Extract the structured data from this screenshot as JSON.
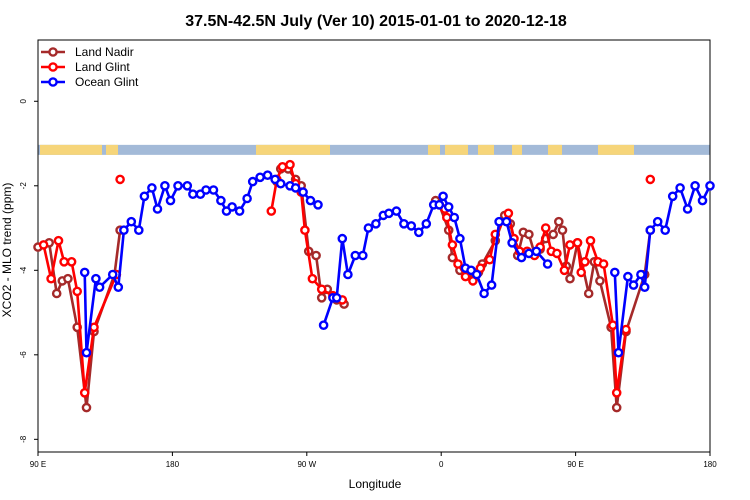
{
  "chart_data": {
    "type": "line",
    "title": "37.5N-42.5N July (Ver 10)   2015-01-01 to 2020-12-18",
    "xlabel": "Longitude",
    "ylabel": "XCO2 - MLO trend (ppm)",
    "xlim": [
      90,
      450
    ],
    "ylim": [
      -8.3,
      1.45
    ],
    "x_ticks": [
      {
        "value": 90,
        "label": "90 E"
      },
      {
        "value": 162,
        "label": "180"
      },
      {
        "value": 234,
        "label": "90 W"
      },
      {
        "value": 306,
        "label": "0"
      },
      {
        "value": 378,
        "label": "90 E"
      },
      {
        "value": 450,
        "label": "180"
      }
    ],
    "y_ticks": [
      {
        "value": 0,
        "label": "0"
      },
      {
        "value": -2,
        "label": "-2"
      },
      {
        "value": -4,
        "label": "-4"
      },
      {
        "value": -6,
        "label": "-6"
      },
      {
        "value": -8,
        "label": "-8"
      }
    ],
    "legend_position": "top-left",
    "map_strip": {
      "y": -1.15,
      "ocean_color": "#a3bad8",
      "land_color": "#f6d57a"
    },
    "series": [
      {
        "name": "Land Nadir",
        "color": "#a52a2a",
        "segments": [
          [
            [
              90,
              -3.45
            ],
            [
              96,
              -3.35
            ],
            [
              100,
              -4.55
            ],
            [
              103,
              -4.25
            ],
            [
              106,
              -4.2
            ],
            [
              111,
              -5.35
            ],
            [
              116,
              -7.25
            ],
            [
              120,
              -5.45
            ],
            [
              131,
              -4.1
            ],
            [
              134,
              -3.05
            ]
          ],
          [
            [
              218,
              -1.9
            ],
            [
              220,
              -1.6
            ],
            [
              224,
              -1.6
            ],
            [
              228,
              -1.85
            ],
            [
              231,
              -2.0
            ],
            [
              235,
              -3.55
            ],
            [
              239,
              -3.65
            ],
            [
              242,
              -4.65
            ],
            [
              245,
              -4.45
            ],
            [
              250,
              -4.7
            ],
            [
              254,
              -4.8
            ]
          ],
          [
            [
              303,
              -2.35
            ],
            [
              305,
              -2.45
            ],
            [
              310,
              -3.05
            ],
            [
              312,
              -3.7
            ],
            [
              316,
              -4.0
            ],
            [
              322,
              -4.05
            ],
            [
              326,
              -4.05
            ],
            [
              328,
              -3.85
            ],
            [
              335,
              -3.3
            ],
            [
              340,
              -2.7
            ],
            [
              343,
              -2.9
            ],
            [
              347,
              -3.65
            ],
            [
              350,
              -3.1
            ],
            [
              353,
              -3.15
            ],
            [
              356,
              -3.6
            ],
            [
              359,
              -3.5
            ],
            [
              362,
              -3.25
            ],
            [
              366,
              -3.15
            ],
            [
              369,
              -2.85
            ],
            [
              371,
              -3.05
            ],
            [
              373,
              -3.9
            ],
            [
              375,
              -4.2
            ],
            [
              379,
              -3.35
            ],
            [
              385,
              -4.55
            ],
            [
              388,
              -3.8
            ],
            [
              391,
              -4.25
            ],
            [
              397,
              -5.35
            ],
            [
              400,
              -7.25
            ],
            [
              405,
              -5.45
            ],
            [
              415,
              -4.1
            ],
            [
              418,
              -3.05
            ]
          ]
        ]
      },
      {
        "name": "Land Glint",
        "color": "#ff0000",
        "segments": [
          [
            [
              93,
              -3.4
            ],
            [
              97,
              -4.2
            ],
            [
              101,
              -3.3
            ],
            [
              104,
              -3.8
            ],
            [
              108,
              -3.8
            ],
            [
              111,
              -4.5
            ],
            [
              115,
              -6.9
            ],
            [
              120,
              -5.35
            ],
            [
              132,
              -4.1
            ]
          ],
          [
            [
              134,
              -1.85
            ]
          ],
          [
            [
              215,
              -2.6
            ],
            [
              218,
              -1.85
            ],
            [
              221,
              -1.55
            ],
            [
              225,
              -1.5
            ],
            [
              228,
              -1.95
            ],
            [
              231,
              -2.15
            ],
            [
              233,
              -3.05
            ],
            [
              237,
              -4.2
            ],
            [
              242,
              -4.45
            ],
            [
              248,
              -4.6
            ],
            [
              253,
              -4.7
            ]
          ],
          [
            [
              308,
              -2.55
            ],
            [
              309,
              -2.75
            ],
            [
              312,
              -3.4
            ],
            [
              315,
              -3.85
            ],
            [
              319,
              -4.15
            ],
            [
              323,
              -4.25
            ],
            [
              327,
              -3.95
            ],
            [
              332,
              -3.75
            ],
            [
              335,
              -3.15
            ],
            [
              342,
              -2.65
            ],
            [
              345,
              -3.25
            ],
            [
              348,
              -3.55
            ],
            [
              352,
              -3.55
            ],
            [
              356,
              -3.65
            ],
            [
              359,
              -3.45
            ],
            [
              362,
              -3.0
            ],
            [
              365,
              -3.55
            ],
            [
              368,
              -3.6
            ],
            [
              372,
              -4.0
            ],
            [
              375,
              -3.4
            ],
            [
              379,
              -3.35
            ],
            [
              381,
              -4.05
            ],
            [
              383,
              -3.8
            ],
            [
              386,
              -3.3
            ],
            [
              390,
              -3.8
            ],
            [
              393,
              -3.85
            ],
            [
              398,
              -5.3
            ],
            [
              400,
              -6.9
            ],
            [
              405,
              -5.4
            ]
          ],
          [
            [
              418,
              -1.85
            ]
          ]
        ]
      },
      {
        "name": "Ocean Glint",
        "color": "#0000ff",
        "segments": [
          [
            [
              115,
              -4.05
            ],
            [
              116,
              -5.95
            ],
            [
              121,
              -4.2
            ],
            [
              123,
              -4.4
            ],
            [
              130,
              -4.1
            ],
            [
              133,
              -4.4
            ],
            [
              136,
              -3.05
            ],
            [
              140,
              -2.85
            ],
            [
              144,
              -3.05
            ],
            [
              147,
              -2.25
            ],
            [
              151,
              -2.05
            ],
            [
              154,
              -2.55
            ],
            [
              158,
              -2.0
            ],
            [
              161,
              -2.35
            ],
            [
              165,
              -2.0
            ],
            [
              170,
              -2.0
            ],
            [
              173,
              -2.2
            ],
            [
              177,
              -2.2
            ],
            [
              180,
              -2.1
            ],
            [
              184,
              -2.1
            ],
            [
              188,
              -2.35
            ],
            [
              191,
              -2.6
            ],
            [
              194,
              -2.5
            ],
            [
              198,
              -2.6
            ],
            [
              202,
              -2.3
            ],
            [
              205,
              -1.9
            ],
            [
              209,
              -1.8
            ],
            [
              213,
              -1.75
            ],
            [
              217,
              -1.85
            ],
            [
              220,
              -1.95
            ],
            [
              225,
              -2.0
            ],
            [
              228,
              -2.05
            ],
            [
              232,
              -2.15
            ],
            [
              236,
              -2.35
            ],
            [
              240,
              -2.45
            ]
          ],
          [
            [
              243,
              -5.3
            ],
            [
              248,
              -4.65
            ],
            [
              250,
              -4.65
            ],
            [
              253,
              -3.25
            ],
            [
              256,
              -4.1
            ],
            [
              260,
              -3.65
            ],
            [
              264,
              -3.65
            ],
            [
              267,
              -3.0
            ],
            [
              271,
              -2.9
            ],
            [
              275,
              -2.7
            ],
            [
              278,
              -2.65
            ],
            [
              282,
              -2.6
            ],
            [
              286,
              -2.9
            ],
            [
              290,
              -2.95
            ],
            [
              294,
              -3.1
            ],
            [
              298,
              -2.9
            ],
            [
              302,
              -2.45
            ],
            [
              305,
              -2.45
            ],
            [
              307,
              -2.25
            ],
            [
              310,
              -2.5
            ],
            [
              313,
              -2.75
            ],
            [
              316,
              -3.25
            ],
            [
              319,
              -3.95
            ],
            [
              322,
              -4.0
            ],
            [
              325,
              -4.1
            ],
            [
              329,
              -4.55
            ],
            [
              333,
              -4.35
            ],
            [
              337,
              -2.85
            ],
            [
              341,
              -2.85
            ],
            [
              344,
              -3.35
            ],
            [
              349,
              -3.7
            ],
            [
              353,
              -3.6
            ],
            [
              357,
              -3.55
            ],
            [
              363,
              -3.85
            ]
          ],
          [
            [
              399,
              -4.05
            ],
            [
              401,
              -5.95
            ],
            [
              406,
              -4.15
            ],
            [
              409,
              -4.35
            ],
            [
              413,
              -4.1
            ],
            [
              415,
              -4.4
            ],
            [
              418,
              -3.05
            ],
            [
              422,
              -2.85
            ],
            [
              426,
              -3.05
            ],
            [
              430,
              -2.25
            ],
            [
              434,
              -2.05
            ],
            [
              438,
              -2.55
            ],
            [
              442,
              -2.0
            ],
            [
              446,
              -2.35
            ],
            [
              450,
              -2.0
            ]
          ]
        ]
      }
    ]
  }
}
